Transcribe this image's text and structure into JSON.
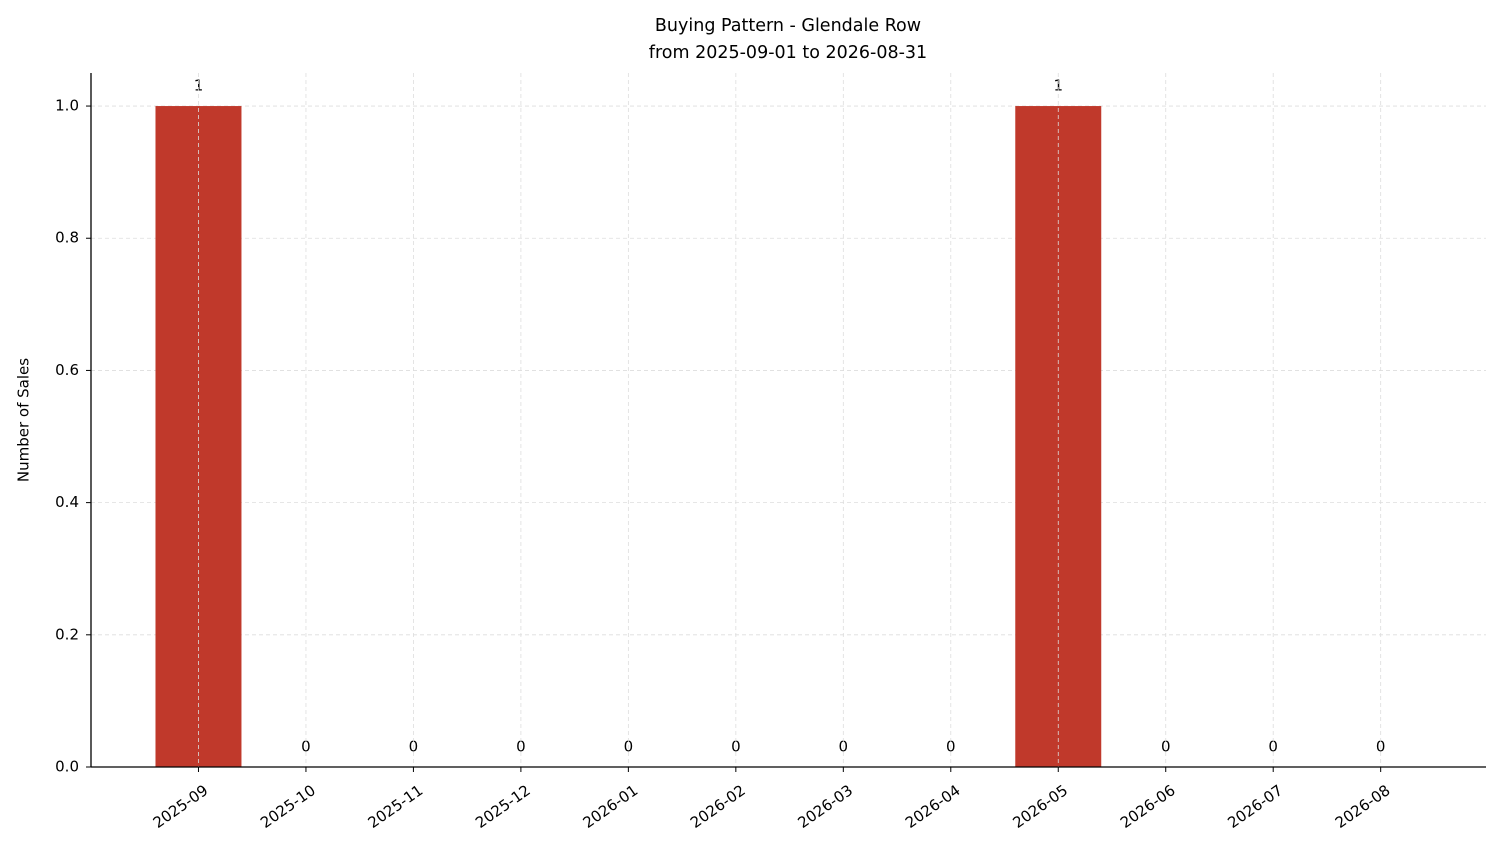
{
  "chart_data": {
    "type": "bar",
    "title": [
      "Buying Pattern - Glendale Row",
      "from 2025-09-01 to 2026-08-31"
    ],
    "y_label": "Number of Sales",
    "categories": [
      "2025-09",
      "2025-10",
      "2025-11",
      "2025-12",
      "2026-01",
      "2026-02",
      "2026-03",
      "2026-04",
      "2026-05",
      "2026-06",
      "2026-07",
      "2026-08"
    ],
    "values": [
      1,
      0,
      0,
      0,
      0,
      0,
      0,
      0,
      1,
      0,
      0,
      0
    ],
    "color": "#c0392b",
    "ylim": [
      0,
      1.05
    ],
    "yticks": [
      {
        "value": 0,
        "label": "0.0"
      },
      0.2,
      0.4,
      0.6,
      0.8,
      {
        "value": 1,
        "label": "1.0"
      }
    ],
    "grid": true
  }
}
